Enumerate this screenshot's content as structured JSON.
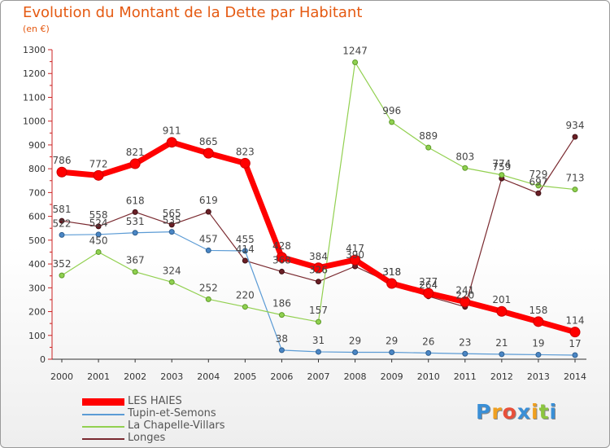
{
  "title": "Evolution du Montant de la Dette par Habitant",
  "subtitle": "(en €)",
  "logo": {
    "text": "Proxiti",
    "letters": [
      "P",
      "r",
      "o",
      "x",
      "i",
      "t",
      "i"
    ],
    "colors": [
      "#3a8fd6",
      "#f0a020",
      "#e8503a",
      "#3a8fd6",
      "#f0a020",
      "#8cc63f",
      "#3a8fd6"
    ]
  },
  "chart_data": {
    "type": "line",
    "x": [
      "2000",
      "2001",
      "2002",
      "2003",
      "2004",
      "2005",
      "2006",
      "2007",
      "2008",
      "2009",
      "2010",
      "2011",
      "2012",
      "2013",
      "2014"
    ],
    "ylim": [
      0,
      1300
    ],
    "yticks": [
      "0",
      "100",
      "200",
      "300",
      "400",
      "500",
      "600",
      "700",
      "800",
      "900",
      "1000",
      "1100",
      "1200",
      "1300"
    ],
    "grid": false,
    "legend_position": "bottom-left",
    "series": [
      {
        "name": "Longes",
        "color": "#7a2a30",
        "values": [
          581,
          558,
          618,
          565,
          619,
          414,
          368,
          326,
          390,
          318,
          264,
          220,
          759,
          697,
          934
        ]
      },
      {
        "name": "Tupin-et-Semons",
        "color": "#5b9bd5",
        "values": [
          522,
          524,
          531,
          535,
          457,
          455,
          38,
          31,
          29,
          29,
          26,
          23,
          21,
          19,
          17
        ]
      },
      {
        "name": "La Chapelle-Villars",
        "color": "#92d050",
        "values": [
          352,
          450,
          367,
          324,
          252,
          220,
          186,
          157,
          1247,
          996,
          889,
          803,
          774,
          729,
          713
        ]
      },
      {
        "name": "LES HAIES",
        "color": "#ff0000",
        "values": [
          786,
          772,
          821,
          911,
          865,
          823,
          428,
          384,
          417,
          318,
          277,
          241,
          201,
          158,
          114
        ]
      }
    ],
    "data_labels": [
      [
        "581",
        "558",
        "618",
        "565",
        "619",
        "414",
        "368",
        "326",
        "390",
        "318",
        "264",
        "220",
        "759",
        "697",
        "934"
      ],
      [
        "522",
        "524",
        "531",
        "535",
        "457",
        "455",
        "38",
        "31",
        "29",
        "29",
        "26",
        "23",
        "21",
        "19",
        "17"
      ],
      [
        "352",
        "450",
        "367",
        "324",
        "252",
        "220",
        "186",
        "157",
        "1247",
        "996",
        "889",
        "803",
        "774",
        "729",
        "713"
      ],
      [
        "786",
        "772",
        "821",
        "911",
        "865",
        "823",
        "428",
        "384",
        "417",
        "318",
        "277",
        "241",
        "201",
        "158",
        "114"
      ]
    ],
    "legend": [
      "LES HAIES",
      "Tupin-et-Semons",
      "La Chapelle-Villars",
      "Longes"
    ]
  }
}
